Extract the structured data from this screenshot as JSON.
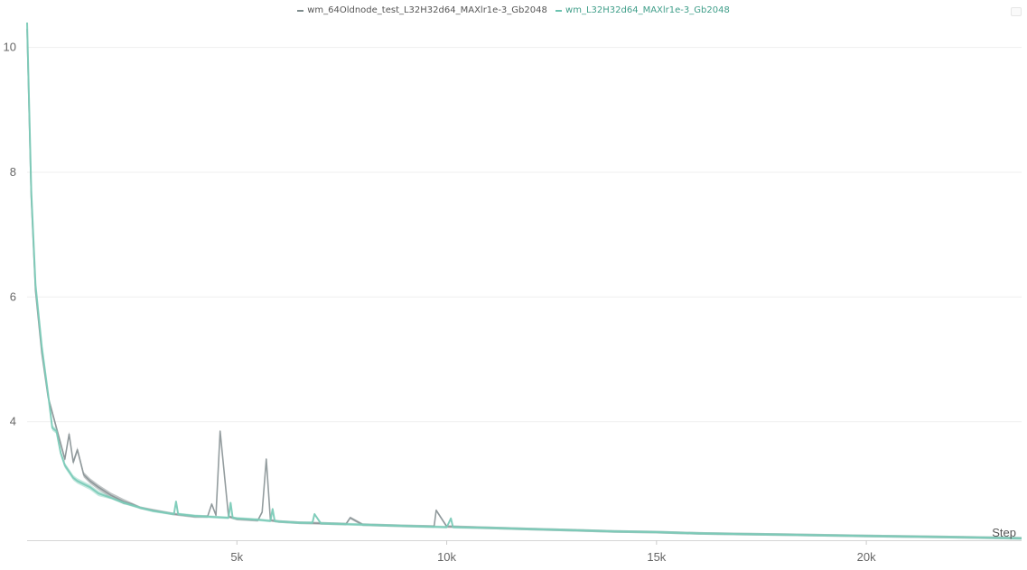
{
  "legend": [
    {
      "label": "wm_64Oldnode_test_L32H32d64_MAXlr1e-3_Gb2048",
      "color": "#7f8c8d",
      "text_color": "#555555"
    },
    {
      "label": "wm_L32H32d64_MAXlr1e-3_Gb2048",
      "color": "#6cc3b0",
      "text_color": "#3f9e89"
    }
  ],
  "chart_data": {
    "type": "line",
    "title": "",
    "xlabel": "Step",
    "ylabel": "",
    "xlim": [
      0,
      23700
    ],
    "ylim": [
      2.1,
      10.4
    ],
    "grid": true,
    "legend_position": "top-center",
    "x_ticks": [
      {
        "value": 5000,
        "label": "5k"
      },
      {
        "value": 10000,
        "label": "10k"
      },
      {
        "value": 15000,
        "label": "15k"
      },
      {
        "value": 20000,
        "label": "20k"
      }
    ],
    "y_ticks": [
      {
        "value": 4,
        "label": "4"
      },
      {
        "value": 6,
        "label": "6"
      },
      {
        "value": 8,
        "label": "8"
      },
      {
        "value": 10,
        "label": "10"
      }
    ],
    "series": [
      {
        "name": "wm_64Oldnode_test_L32H32d64_MAXlr1e-3_Gb2048",
        "color": "#8a9496",
        "x": [
          0,
          100,
          200,
          350,
          500,
          700,
          900,
          1000,
          1100,
          1200,
          1350,
          1500,
          1700,
          2000,
          2300,
          2500,
          2700,
          3000,
          3500,
          4000,
          4300,
          4400,
          4500,
          4600,
          4800,
          5000,
          5500,
          5600,
          5700,
          5800,
          6000,
          6500,
          7000,
          7600,
          7700,
          8000,
          9000,
          9700,
          9750,
          10000,
          11000,
          12000,
          13000,
          14000,
          15000,
          16000,
          17000,
          18000,
          19000,
          20000,
          21000,
          22000,
          23000,
          23700
        ],
        "y": [
          10.3,
          7.6,
          6.1,
          5.1,
          4.4,
          3.9,
          3.4,
          3.8,
          3.35,
          3.55,
          3.15,
          3.05,
          2.95,
          2.82,
          2.72,
          2.68,
          2.62,
          2.58,
          2.52,
          2.48,
          2.48,
          2.68,
          2.5,
          3.85,
          2.48,
          2.44,
          2.42,
          2.55,
          3.4,
          2.42,
          2.4,
          2.38,
          2.37,
          2.36,
          2.46,
          2.35,
          2.33,
          2.32,
          2.58,
          2.32,
          2.3,
          2.28,
          2.26,
          2.24,
          2.23,
          2.21,
          2.2,
          2.19,
          2.18,
          2.17,
          2.16,
          2.15,
          2.14,
          2.13
        ]
      },
      {
        "name": "wm_L32H32d64_MAXlr1e-3_Gb2048",
        "color": "#7ccbb8",
        "x": [
          0,
          100,
          200,
          350,
          500,
          600,
          700,
          800,
          900,
          1000,
          1100,
          1200,
          1350,
          1500,
          1700,
          2000,
          2300,
          2500,
          2700,
          3000,
          3500,
          3550,
          3600,
          4000,
          4500,
          4800,
          4850,
          4900,
          5000,
          5500,
          5800,
          5850,
          5900,
          6000,
          6500,
          6800,
          6850,
          7000,
          7500,
          8000,
          9000,
          10000,
          10100,
          10150,
          11000,
          12000,
          13000,
          14000,
          15000,
          16000,
          17000,
          18000,
          19000,
          20000,
          21000,
          22000,
          23000,
          23700
        ],
        "y": [
          10.4,
          7.7,
          6.2,
          5.2,
          4.45,
          3.9,
          3.85,
          3.5,
          3.3,
          3.2,
          3.1,
          3.05,
          3.0,
          2.95,
          2.85,
          2.78,
          2.7,
          2.66,
          2.62,
          2.57,
          2.52,
          2.72,
          2.52,
          2.49,
          2.47,
          2.46,
          2.7,
          2.46,
          2.45,
          2.43,
          2.41,
          2.6,
          2.41,
          2.4,
          2.38,
          2.38,
          2.52,
          2.37,
          2.36,
          2.35,
          2.33,
          2.31,
          2.45,
          2.31,
          2.3,
          2.28,
          2.26,
          2.24,
          2.23,
          2.21,
          2.2,
          2.19,
          2.18,
          2.17,
          2.16,
          2.15,
          2.14,
          2.13
        ]
      }
    ]
  }
}
